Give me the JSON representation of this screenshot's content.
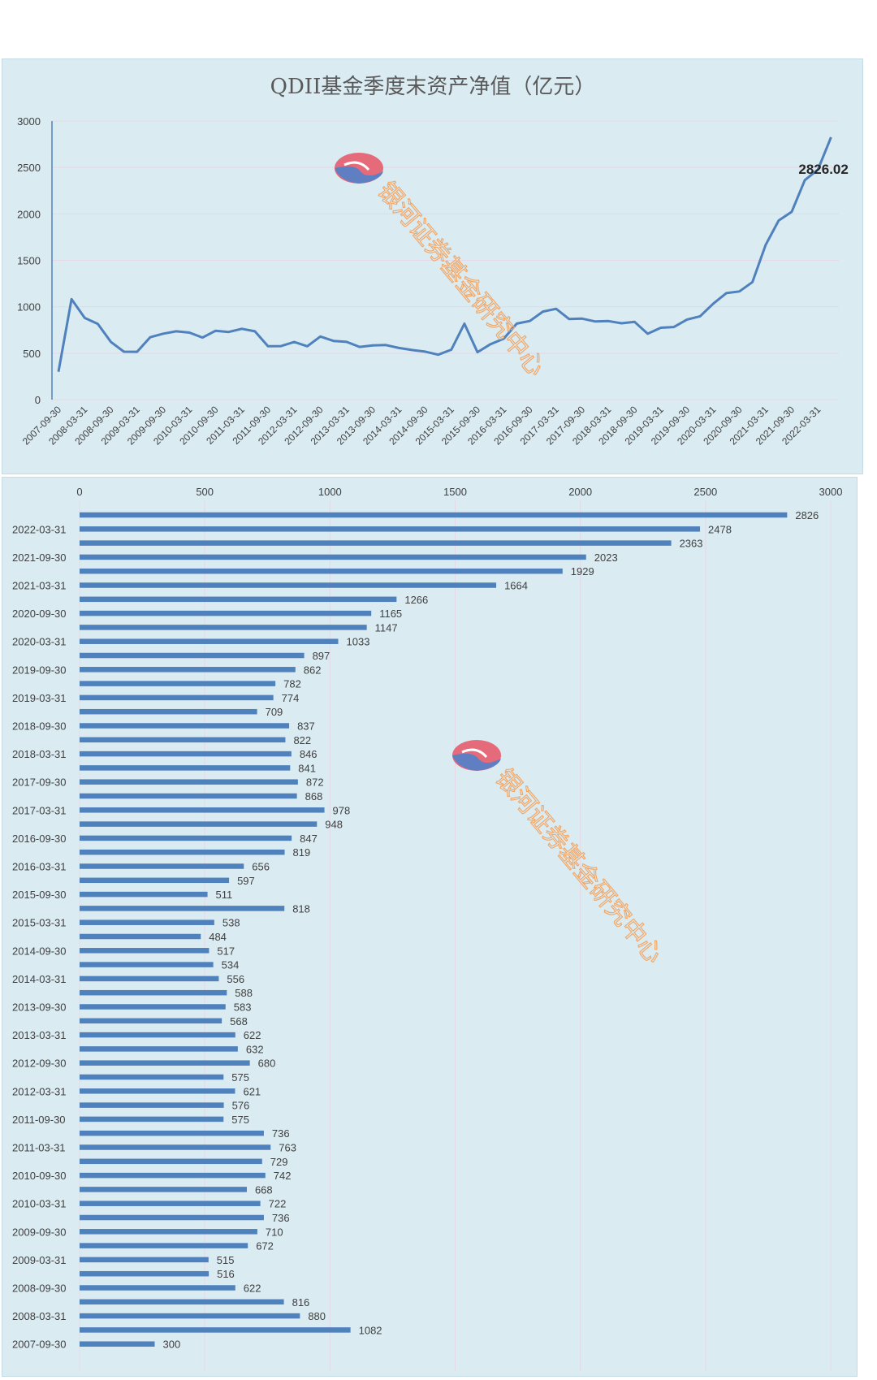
{
  "colors": {
    "series": "#4f81bd",
    "panel_bg": "#daebf2",
    "grid": "#e6d8e6",
    "axis_text": "#404040",
    "watermark": "#f4a460"
  },
  "watermark": {
    "text": "银河证券基金研究中心",
    "icon": "galaxy-logo-icon"
  },
  "line_chart": {
    "last_label": "2826.02"
  },
  "chart_data": [
    {
      "type": "line",
      "title": "QDII基金季度末资产净值（亿元）",
      "ylim": [
        0,
        3000
      ],
      "yticks": [
        0,
        500,
        1000,
        1500,
        2000,
        2500,
        3000
      ],
      "grid": true,
      "x": [
        "2007-09-30",
        "2007-12-31",
        "2008-03-31",
        "2008-06-30",
        "2008-09-30",
        "2008-12-31",
        "2009-03-31",
        "2009-06-30",
        "2009-09-30",
        "2009-12-31",
        "2010-03-31",
        "2010-06-30",
        "2010-09-30",
        "2010-12-31",
        "2011-03-31",
        "2011-06-30",
        "2011-09-30",
        "2011-12-31",
        "2012-03-31",
        "2012-06-30",
        "2012-09-30",
        "2012-12-31",
        "2013-03-31",
        "2013-06-30",
        "2013-09-30",
        "2013-12-31",
        "2014-03-31",
        "2014-06-30",
        "2014-09-30",
        "2014-12-31",
        "2015-03-31",
        "2015-06-30",
        "2015-09-30",
        "2015-12-31",
        "2016-03-31",
        "2016-06-30",
        "2016-09-30",
        "2016-12-31",
        "2017-03-31",
        "2017-06-30",
        "2017-09-30",
        "2017-12-31",
        "2018-03-31",
        "2018-06-30",
        "2018-09-30",
        "2018-12-31",
        "2019-03-31",
        "2019-06-30",
        "2019-09-30",
        "2019-12-31",
        "2020-03-31",
        "2020-06-30",
        "2020-09-30",
        "2020-12-31",
        "2021-03-31",
        "2021-06-30",
        "2021-09-30",
        "2021-12-31",
        "2022-03-31",
        "2022-06-30"
      ],
      "x_tick_labels": [
        "2007-09-30",
        "2008-03-31",
        "2008-09-30",
        "2009-03-31",
        "2009-09-30",
        "2010-03-31",
        "2010-09-30",
        "2011-03-31",
        "2011-09-30",
        "2012-03-31",
        "2012-09-30",
        "2013-03-31",
        "2013-09-30",
        "2014-03-31",
        "2014-09-30",
        "2015-03-31",
        "2015-09-30",
        "2016-03-31",
        "2016-09-30",
        "2017-03-31",
        "2017-09-30",
        "2018-03-31",
        "2018-09-30",
        "2019-03-31",
        "2019-09-30",
        "2020-03-31",
        "2020-09-30",
        "2021-03-31",
        "2021-09-30",
        "2022-03-31"
      ],
      "values": [
        300,
        1082,
        880,
        816,
        622,
        516,
        515,
        672,
        710,
        736,
        722,
        668,
        742,
        729,
        763,
        736,
        575,
        576,
        621,
        575,
        680,
        632,
        622,
        568,
        583,
        588,
        556,
        534,
        517,
        484,
        538,
        818,
        511,
        597,
        656,
        819,
        847,
        948,
        978,
        868,
        872,
        841,
        846,
        822,
        837,
        709,
        774,
        782,
        862,
        897,
        1033,
        1147,
        1165,
        1266,
        1664,
        1929,
        2023,
        2363,
        2478,
        2826.02
      ],
      "annotations": [
        "2826.02"
      ]
    },
    {
      "type": "bar",
      "orientation": "horizontal",
      "xlim": [
        0,
        3000
      ],
      "xticks": [
        0,
        500,
        1000,
        1500,
        2000,
        2500,
        3000
      ],
      "grid": true,
      "categories": [
        "2022-06-30",
        "2022-03-31",
        "2021-12-31",
        "2021-09-30",
        "2021-06-30",
        "2021-03-31",
        "2020-12-31",
        "2020-09-30",
        "2020-06-30",
        "2020-03-31",
        "2019-12-31",
        "2019-09-30",
        "2019-06-30",
        "2019-03-31",
        "2018-12-31",
        "2018-09-30",
        "2018-06-30",
        "2018-03-31",
        "2017-12-31",
        "2017-09-30",
        "2017-06-30",
        "2017-03-31",
        "2016-12-31",
        "2016-09-30",
        "2016-06-30",
        "2016-03-31",
        "2015-12-31",
        "2015-09-30",
        "2015-06-30",
        "2015-03-31",
        "2014-12-31",
        "2014-09-30",
        "2014-06-30",
        "2014-03-31",
        "2013-12-31",
        "2013-09-30",
        "2013-06-30",
        "2013-03-31",
        "2012-12-31",
        "2012-09-30",
        "2012-06-30",
        "2012-03-31",
        "2011-12-31",
        "2011-09-30",
        "2011-06-30",
        "2011-03-31",
        "2010-12-31",
        "2010-09-30",
        "2010-06-30",
        "2010-03-31",
        "2009-12-31",
        "2009-09-30",
        "2009-06-30",
        "2009-03-31",
        "2008-12-31",
        "2008-09-30",
        "2008-06-30",
        "2008-03-31",
        "2007-12-31",
        "2007-09-30"
      ],
      "category_labels_shown": [
        "2022-03-31",
        "2021-09-30",
        "2021-03-31",
        "2020-09-30",
        "2020-03-31",
        "2019-09-30",
        "2019-03-31",
        "2018-09-30",
        "2018-03-31",
        "2017-09-30",
        "2017-03-31",
        "2016-09-30",
        "2016-03-31",
        "2015-09-30",
        "2015-03-31",
        "2014-09-30",
        "2014-03-31",
        "2013-09-30",
        "2013-03-31",
        "2012-09-30",
        "2012-03-31",
        "2011-09-30",
        "2011-03-31",
        "2010-09-30",
        "2010-03-31",
        "2009-09-30",
        "2009-03-31",
        "2008-09-30",
        "2008-03-31",
        "2007-09-30"
      ],
      "values": [
        2826,
        2478,
        2363,
        2023,
        1929,
        1664,
        1266,
        1165,
        1147,
        1033,
        897,
        862,
        782,
        774,
        709,
        837,
        822,
        846,
        841,
        872,
        868,
        978,
        948,
        847,
        819,
        656,
        597,
        511,
        818,
        538,
        484,
        517,
        534,
        556,
        588,
        583,
        568,
        622,
        632,
        680,
        575,
        621,
        576,
        575,
        736,
        763,
        729,
        742,
        668,
        722,
        736,
        710,
        672,
        515,
        516,
        622,
        816,
        880,
        1082,
        300
      ]
    }
  ]
}
